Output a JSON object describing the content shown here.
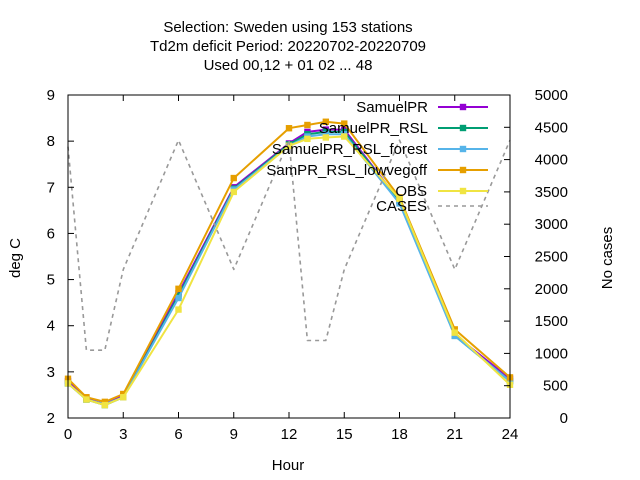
{
  "chart_data": {
    "type": "line",
    "title_lines": [
      "Selection: Sweden using   153 stations",
      "Td2m deficit   Period: 20220702-20220709",
      "Used  00,12  + 01 02 ... 48"
    ],
    "xlabel": "Hour",
    "ylabel": "deg C",
    "y2label": "No cases",
    "xlim": [
      0,
      24
    ],
    "ylim": [
      2,
      9
    ],
    "y2lim": [
      0,
      5000
    ],
    "xticks": [
      "0",
      "3",
      "6",
      "9",
      "12",
      "15",
      "18",
      "21",
      "24"
    ],
    "yticks": [
      "2",
      "3",
      "4",
      "5",
      "6",
      "7",
      "8",
      "9"
    ],
    "y2ticks": [
      "0",
      "500",
      "1000",
      "1500",
      "2000",
      "2500",
      "3000",
      "3500",
      "4000",
      "4500",
      "5000"
    ],
    "grid": false,
    "legend_position": "top-right",
    "legend_labels": [
      "SamuelPR",
      "SamuelPR_RSL",
      "SamuelPR_RSL_forest",
      "SamPR_RSL_lowvegoff",
      "OBS",
      "CASES"
    ],
    "series": [
      {
        "name": "SamuelPR",
        "color": "#9400d3",
        "x": [
          0,
          1,
          2,
          3,
          6,
          9,
          12,
          13,
          14,
          15,
          18,
          21,
          24
        ],
        "y": [
          2.8,
          2.42,
          2.3,
          2.48,
          4.7,
          7.0,
          7.95,
          8.2,
          8.25,
          8.25,
          6.7,
          3.8,
          2.85
        ]
      },
      {
        "name": "SamuelPR_RSL",
        "color": "#009e73",
        "x": [
          0,
          1,
          2,
          3,
          6,
          9,
          12,
          13,
          14,
          15,
          18,
          21,
          24
        ],
        "y": [
          2.75,
          2.4,
          2.28,
          2.45,
          4.65,
          6.97,
          7.93,
          8.15,
          8.2,
          8.2,
          6.7,
          3.78,
          2.8
        ]
      },
      {
        "name": "SamuelPR_RSL_forest",
        "color": "#56b4e9",
        "x": [
          0,
          1,
          2,
          3,
          6,
          9,
          12,
          13,
          14,
          15,
          18,
          21,
          24
        ],
        "y": [
          2.75,
          2.4,
          2.3,
          2.45,
          4.6,
          6.95,
          7.9,
          8.1,
          8.15,
          8.15,
          6.65,
          3.78,
          2.8
        ]
      },
      {
        "name": "SamPR_RSL_lowvegoff",
        "color": "#e69f00",
        "x": [
          0,
          1,
          2,
          3,
          6,
          9,
          12,
          13,
          14,
          15,
          18,
          21,
          24
        ],
        "y": [
          2.85,
          2.45,
          2.35,
          2.52,
          4.8,
          7.2,
          8.28,
          8.35,
          8.42,
          8.38,
          6.78,
          3.92,
          2.88
        ]
      },
      {
        "name": "OBS",
        "color": "#f0e442",
        "x": [
          0,
          1,
          2,
          3,
          6,
          9,
          12,
          13,
          14,
          15,
          18,
          21,
          24
        ],
        "y": [
          2.75,
          2.4,
          2.28,
          2.45,
          4.35,
          6.9,
          7.9,
          8.05,
          8.08,
          8.1,
          6.75,
          3.85,
          2.72
        ]
      },
      {
        "name": "CASES",
        "color": "#999999",
        "axis": "y2",
        "x": [
          0,
          1,
          2,
          3,
          6,
          9,
          12,
          13,
          14,
          15,
          18,
          21,
          24
        ],
        "y": [
          4200,
          1050,
          1050,
          2300,
          4300,
          2300,
          4300,
          1200,
          1200,
          2300,
          4300,
          2300,
          4300
        ]
      }
    ]
  }
}
